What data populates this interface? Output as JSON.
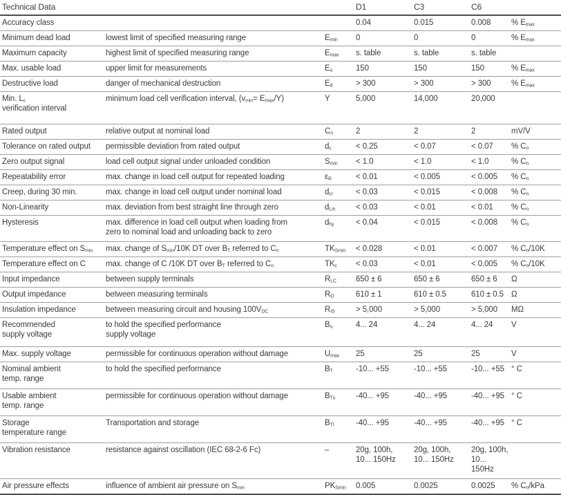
{
  "doc": {
    "title": "Technical Data",
    "columns": [
      "D1",
      "C3",
      "C6"
    ],
    "rows": [
      {
        "name": "Accuracy class",
        "desc": "",
        "symbol": "",
        "d1": "0.04",
        "c3": "0.015",
        "c6": "0.008",
        "unit": "% E~max~"
      },
      {
        "name": "Minimum dead load",
        "desc": "lowest limit of specified measuring range",
        "symbol": "E~min~",
        "d1": "0",
        "c3": "0",
        "c6": "0",
        "unit": "% E~max~"
      },
      {
        "name": "Maximum capacity",
        "desc": "highest limit of specified measuring range",
        "symbol": "E~max~",
        "d1": "s. table",
        "c3": "s. table",
        "c6": "s. table",
        "unit": ""
      },
      {
        "name": "Max. usable load",
        "desc": "upper limit for measurements",
        "symbol": "E~u~",
        "d1": "150",
        "c3": "150",
        "c6": "150",
        "unit": "% E~max~"
      },
      {
        "name": "Destructive load",
        "desc": "danger of mechanical destruction",
        "symbol": "E~d~",
        "d1": "> 300",
        "c3": "> 300",
        "c6": "> 300",
        "unit": "% E~max~"
      },
      {
        "name": "Min. L~c~\nverification interval",
        "desc": "minimum load cell verification interval, (v~min~= E~max~/Y)",
        "symbol": "Y",
        "d1": "5,000",
        "c3": "14,000",
        "c6": "20,000",
        "unit": ""
      },
      {
        "name": "Rated output",
        "desc": "relative output at nominal load",
        "symbol": "C~n~",
        "d1": "2",
        "c3": "2",
        "c6": "2",
        "unit": "mV/V"
      },
      {
        "name": "Tolerance on rated output",
        "desc": "permissible deviation from rated output",
        "symbol": "d~c~",
        "d1": "< 0.25",
        "c3": "< 0.07",
        "c6": "< 0.07",
        "unit": "% C~n~"
      },
      {
        "name": "Zero output signal",
        "desc": "load cell output signal under unloaded condition",
        "symbol": "S~min~",
        "d1": "< 1.0",
        "c3": "< 1.0",
        "c6": "< 1.0",
        "unit": "% C~n~"
      },
      {
        "name": "Repeatability error",
        "desc": "max. change in load cell output for repeated loading",
        "symbol": "ε~R~",
        "d1": "< 0.01",
        "c3": "< 0.005",
        "c6": "< 0.005",
        "unit": "% C~n~"
      },
      {
        "name": "Creep, during 30 min.",
        "desc": "max. change in load cell output under nominal load",
        "symbol": "d~cr~",
        "d1": "< 0.03",
        "c3": "< 0.015",
        "c6": "< 0.008",
        "unit": "% C~n~"
      },
      {
        "name": "Non-Linearity",
        "desc": "max. deviation from best straight line through zero",
        "symbol": "d~Lin~",
        "d1": "< 0.03",
        "c3": "< 0.01",
        "c6": "< 0.01",
        "unit": "% C~n~"
      },
      {
        "name": "Hysteresis",
        "desc": "max. difference in load cell output when loading from\nzero to nominal load and unloading back to zero",
        "symbol": "d~hy~",
        "d1": "< 0.04",
        "c3": "< 0.015",
        "c6": "< 0.008",
        "unit": "% C~n~"
      },
      {
        "name": "Temperature effect on S~min~",
        "desc": "max. change of S~min~/10K DT over B~T~ referred to C~n~",
        "symbol": "TK~Smin~",
        "d1": "< 0.028",
        "c3": "< 0.01",
        "c6": "< 0.007",
        "unit": "% C~n~/10K"
      },
      {
        "name": "Temperature effect on C",
        "desc": "max. change of C /10K DT over B~T~ referred to C~n~",
        "symbol": "TK~c~",
        "d1": "< 0.03",
        "c3": "< 0.01",
        "c6": "< 0.005",
        "unit": "% C~n~/10K"
      },
      {
        "name": "Input impedance",
        "desc": "between supply terminals",
        "symbol": "R~LC~",
        "d1": "650 ± 6",
        "c3": "650 ± 6",
        "c6": "650 ± 6",
        "unit": "Ω"
      },
      {
        "name": "Output impedance",
        "desc": "between measuring terminals",
        "symbol": "R~O~",
        "d1": "610 ± 1",
        "c3": "610 ± 0.5",
        "c6": "610 ± 0.5",
        "unit": "Ω"
      },
      {
        "name": "Insulation impedance",
        "desc": "between measuring circuit and housing 100V~DC~",
        "symbol": "R~IS~",
        "d1": "> 5,000",
        "c3": "> 5,000",
        "c6": "> 5,000",
        "unit": "MΩ"
      },
      {
        "name": "Recommended\nsupply voltage",
        "desc": "to hold the specified performance\nsupply voltage",
        "symbol": "B~u~",
        "d1": "4... 24",
        "c3": "4... 24",
        "c6": "4... 24",
        "unit": "V"
      },
      {
        "name": "Max. supply voltage",
        "desc": "permissible for continuous operation without damage",
        "symbol": "U~max~",
        "d1": "25",
        "c3": "25",
        "c6": "25",
        "unit": "V"
      },
      {
        "name": "Nominal ambient\ntemp. range",
        "desc": "to hold the specified performance",
        "symbol": "B~T~",
        "d1": "-10... +55",
        "c3": "-10... +55",
        "c6": "-10... +55",
        "unit": "° C"
      },
      {
        "name": "Usable ambient\ntemp. range",
        "desc": "permissible for continuous operation without damage",
        "symbol": "B~Tu~",
        "d1": "-40... +95",
        "c3": "-40... +95",
        "c6": "-40... +95",
        "unit": "° C"
      },
      {
        "name": "Storage\ntemperature range",
        "desc": "Transportation and storage",
        "symbol": "B~Tl~",
        "d1": "-40... +95",
        "c3": "-40... +95",
        "c6": "-40... +95",
        "unit": "° C"
      },
      {
        "name": "Vibration resistance",
        "desc": "resistance against oscillation (IEC 68-2-6 Fc)",
        "symbol": "–",
        "d1": "20g, 100h,\n10... 150Hz",
        "c3": "20g, 100h,\n10... 150Hz",
        "c6": "20g, 100h,\n10... 150Hz",
        "unit": ""
      },
      {
        "name": "Air pressure effects",
        "desc": "influence of ambient air pressure on S~min~",
        "symbol": "PK~Smin~",
        "d1": "0.005",
        "c3": "0.0025",
        "c6": "0.0025",
        "unit": "% C~n~/kPa"
      }
    ]
  }
}
